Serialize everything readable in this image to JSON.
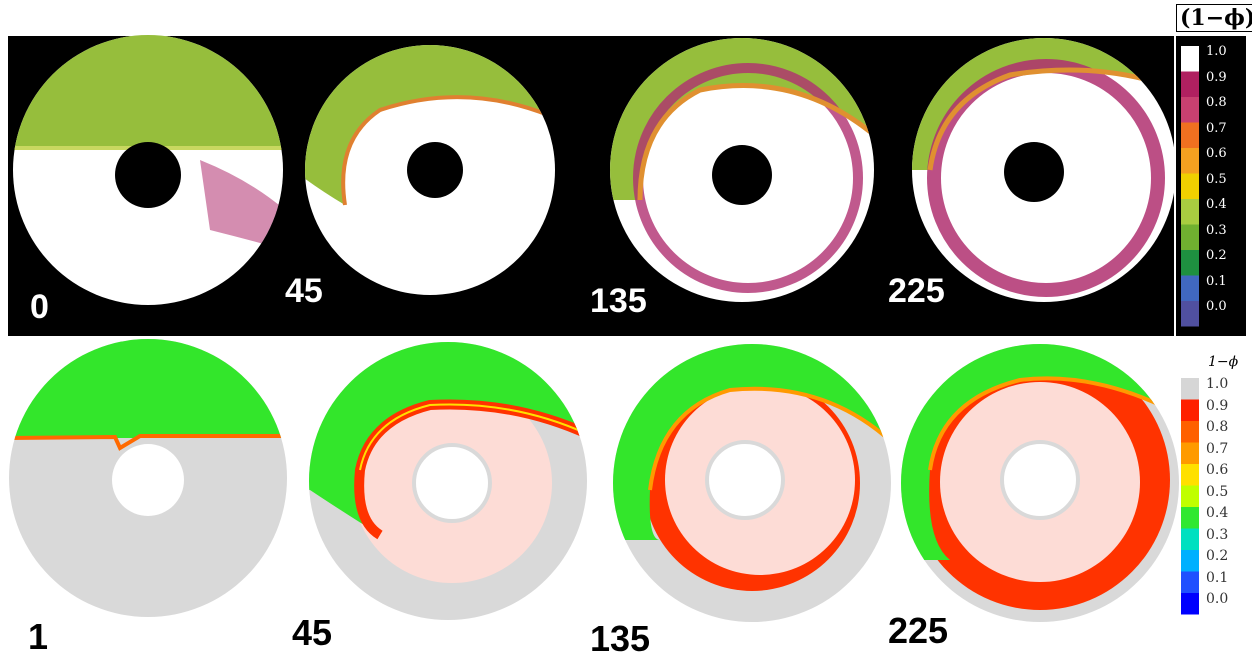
{
  "top_panel": {
    "labels": [
      "0",
      "45",
      "135",
      "225"
    ],
    "colorbar": {
      "title": "(1−ϕ)",
      "ticks": [
        "1.0",
        "0.9",
        "0.8",
        "0.7",
        "0.6",
        "0.5",
        "0.4",
        "0.3",
        "0.2",
        "0.1",
        "0.0"
      ],
      "colors": [
        "#ffffff",
        "#b02060",
        "#c84070",
        "#f07020",
        "#f4a020",
        "#f0d000",
        "#a8cc40",
        "#70b030",
        "#1e9040",
        "#4068c0",
        "#5050a0"
      ]
    }
  },
  "bottom_panel": {
    "labels": [
      "1",
      "45",
      "135",
      "225"
    ],
    "colorbar": {
      "title": "1−ϕ",
      "ticks": [
        "1.0",
        "0.9",
        "0.8",
        "0.7",
        "0.6",
        "0.5",
        "0.4",
        "0.3",
        "0.2",
        "0.1",
        "0.0"
      ],
      "colors": [
        "#d6d6d6",
        "#ff2000",
        "#ff6000",
        "#ff9a00",
        "#ffe000",
        "#c0ff00",
        "#30e830",
        "#00e0c0",
        "#00b0ff",
        "#2050ff",
        "#0000ff"
      ]
    }
  },
  "colors": {
    "green": "#7fbf2e",
    "sim_green": "#33e62b",
    "sim_gray": "#d9d9d9",
    "sim_pink": "#fddcd6",
    "sim_red": "#ff3300",
    "magenta": "#a02050"
  }
}
